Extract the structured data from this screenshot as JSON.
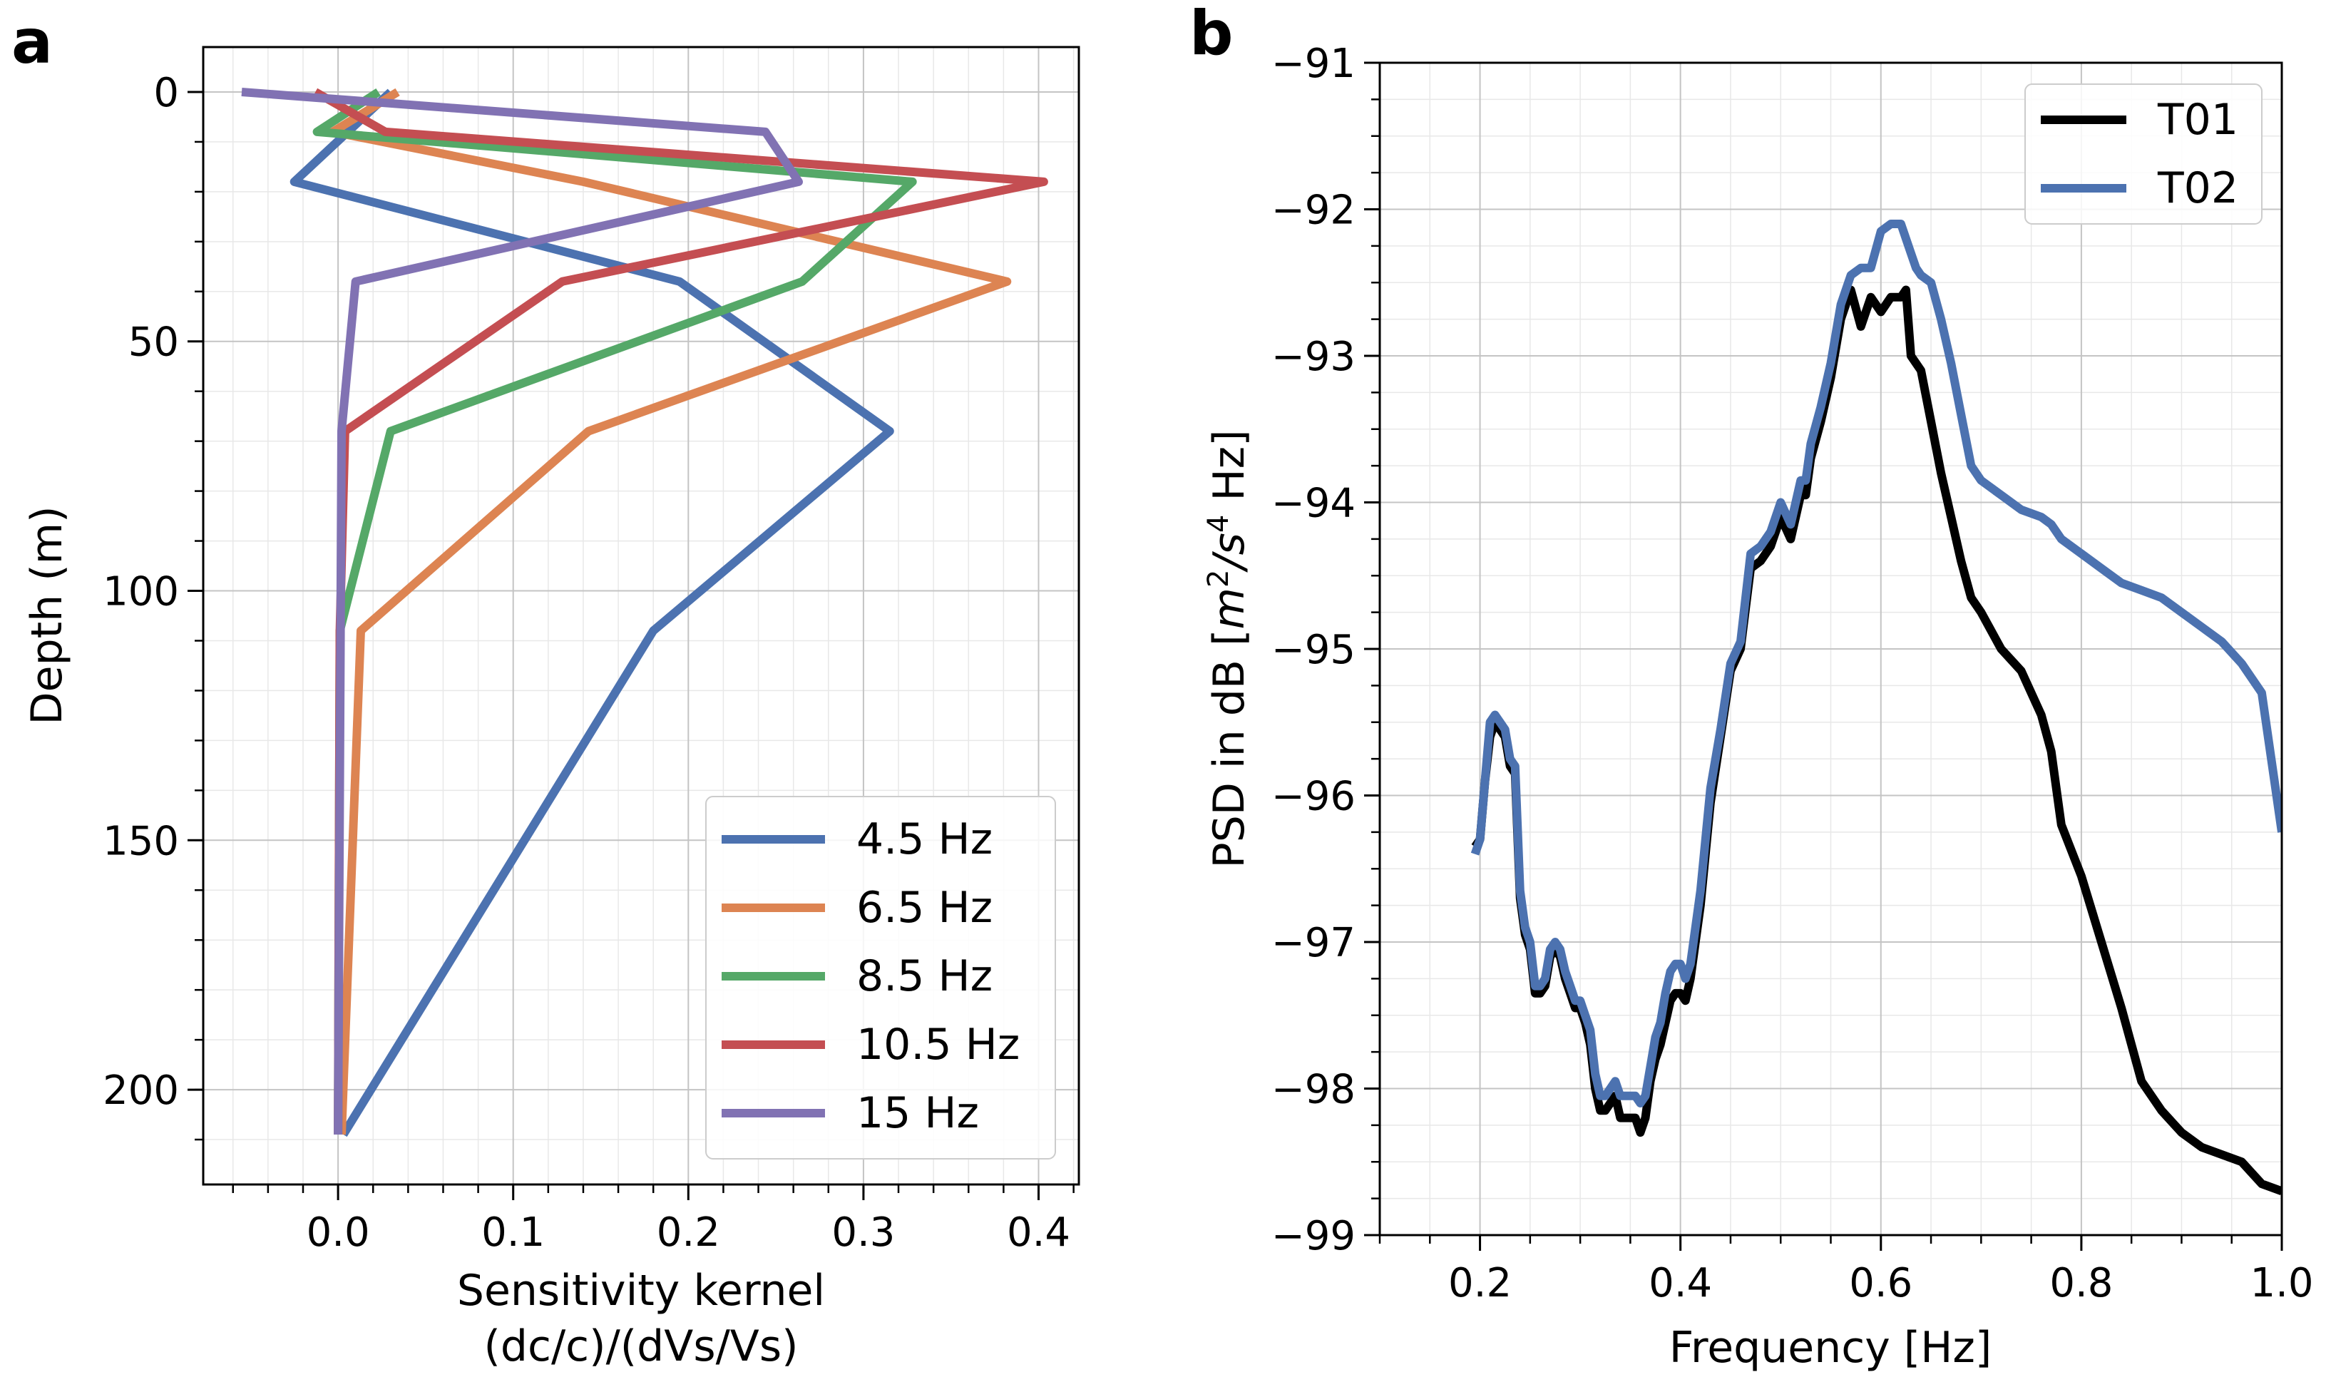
{
  "figure": {
    "panel_a_label": "a",
    "panel_b_label": "b"
  },
  "chart_data": [
    {
      "type": "line",
      "panel": "a",
      "title": "",
      "xlabel_line1": "Sensitivity kernel",
      "xlabel_line2": "(dc/c)/(dVs/Vs)",
      "ylabel": "Depth (m)",
      "xlim": [
        -0.077,
        0.423
      ],
      "ylim": [
        219,
        -9
      ],
      "y_inverted": true,
      "grid": true,
      "legend_position": "lower-right",
      "xticks": [
        0.0,
        0.1,
        0.2,
        0.3,
        0.4
      ],
      "xtick_labels": [
        "0.0",
        "0.1",
        "0.2",
        "0.3",
        "0.4"
      ],
      "yticks": [
        0,
        50,
        100,
        150,
        200
      ],
      "ytick_labels": [
        "0",
        "50",
        "100",
        "150",
        "200"
      ],
      "series": [
        {
          "name": "4.5 Hz",
          "color": "#4c72b0",
          "x": [
            0.03,
            -0.025,
            0.195,
            0.315,
            0.18,
            0.003
          ],
          "y": [
            0,
            18,
            38,
            68,
            108,
            209
          ]
        },
        {
          "name": "6.5 Hz",
          "color": "#dd8452",
          "x": [
            0.034,
            -0.003,
            0.14,
            0.382,
            0.143,
            0.013,
            0.002
          ],
          "y": [
            0,
            8,
            18,
            38,
            68,
            108,
            209
          ]
        },
        {
          "name": "8.5 Hz",
          "color": "#55a868",
          "x": [
            0.023,
            -0.012,
            0.328,
            0.265,
            0.03,
            0.001,
            0.0
          ],
          "y": [
            0,
            8,
            18,
            38,
            68,
            108,
            209
          ]
        },
        {
          "name": "10.5 Hz",
          "color": "#c44e52",
          "x": [
            -0.013,
            0.027,
            0.403,
            0.128,
            0.004,
            0.001,
            0.0
          ],
          "y": [
            0,
            8,
            18,
            38,
            68,
            108,
            209
          ]
        },
        {
          "name": "15 Hz",
          "color": "#8172b3",
          "x": [
            -0.055,
            0.244,
            0.263,
            0.01,
            0.002,
            0.0
          ],
          "y": [
            0,
            8,
            18,
            38,
            68,
            209
          ]
        }
      ]
    },
    {
      "type": "line",
      "panel": "b",
      "title": "",
      "xlabel": "Frequency [Hz]",
      "ylabel_prefix": "PSD in dB [",
      "ylabel_unit_m": "m",
      "ylabel_unit_m_exp": "2",
      "ylabel_unit_slash": "/",
      "ylabel_unit_s": "s",
      "ylabel_unit_s_exp": "4",
      "ylabel_suffix": " Hz]",
      "xlim": [
        0.1,
        1.0
      ],
      "ylim": [
        -99,
        -91
      ],
      "grid": true,
      "legend_position": "upper-right",
      "xticks": [
        0.2,
        0.4,
        0.6,
        0.8,
        1.0
      ],
      "xtick_labels": [
        "0.2",
        "0.4",
        "0.6",
        "0.8",
        "1.0"
      ],
      "yticks": [
        -99,
        -98,
        -97,
        -96,
        -95,
        -94,
        -93,
        -92,
        -91
      ],
      "ytick_labels": [
        "−99",
        "−98",
        "−97",
        "−96",
        "−95",
        "−94",
        "−93",
        "−92",
        "−91"
      ],
      "series": [
        {
          "name": "T01",
          "color": "#000000",
          "x": [
            0.195,
            0.2,
            0.205,
            0.21,
            0.215,
            0.22,
            0.225,
            0.23,
            0.235,
            0.24,
            0.245,
            0.25,
            0.255,
            0.26,
            0.265,
            0.27,
            0.275,
            0.28,
            0.285,
            0.29,
            0.295,
            0.3,
            0.305,
            0.31,
            0.315,
            0.32,
            0.325,
            0.33,
            0.335,
            0.34,
            0.345,
            0.35,
            0.355,
            0.36,
            0.365,
            0.37,
            0.375,
            0.38,
            0.385,
            0.39,
            0.395,
            0.4,
            0.405,
            0.41,
            0.42,
            0.43,
            0.44,
            0.45,
            0.46,
            0.47,
            0.48,
            0.49,
            0.5,
            0.51,
            0.52,
            0.525,
            0.53,
            0.54,
            0.55,
            0.56,
            0.57,
            0.58,
            0.59,
            0.6,
            0.61,
            0.62,
            0.625,
            0.63,
            0.635,
            0.64,
            0.65,
            0.66,
            0.67,
            0.68,
            0.69,
            0.7,
            0.72,
            0.74,
            0.76,
            0.77,
            0.78,
            0.8,
            0.82,
            0.84,
            0.86,
            0.88,
            0.9,
            0.92,
            0.94,
            0.96,
            0.98,
            1.0
          ],
          "y": [
            -96.35,
            -96.3,
            -95.9,
            -95.6,
            -95.5,
            -95.55,
            -95.6,
            -95.8,
            -95.85,
            -96.7,
            -96.95,
            -97.05,
            -97.35,
            -97.35,
            -97.3,
            -97.1,
            -97.05,
            -97.1,
            -97.25,
            -97.35,
            -97.45,
            -97.45,
            -97.55,
            -97.7,
            -98.0,
            -98.15,
            -98.15,
            -98.1,
            -98.05,
            -98.2,
            -98.2,
            -98.2,
            -98.2,
            -98.3,
            -98.2,
            -97.95,
            -97.8,
            -97.7,
            -97.55,
            -97.4,
            -97.35,
            -97.35,
            -97.4,
            -97.25,
            -96.75,
            -96.05,
            -95.6,
            -95.15,
            -95.0,
            -94.45,
            -94.4,
            -94.3,
            -94.1,
            -94.25,
            -93.95,
            -93.95,
            -93.7,
            -93.45,
            -93.15,
            -92.75,
            -92.55,
            -92.8,
            -92.6,
            -92.7,
            -92.6,
            -92.6,
            -92.55,
            -93.0,
            -93.05,
            -93.1,
            -93.45,
            -93.8,
            -94.1,
            -94.4,
            -94.65,
            -94.75,
            -95.0,
            -95.15,
            -95.45,
            -95.7,
            -96.2,
            -96.55,
            -97.0,
            -97.45,
            -97.95,
            -98.15,
            -98.3,
            -98.4,
            -98.45,
            -98.5,
            -98.65,
            -98.7
          ]
        },
        {
          "name": "T02",
          "color": "#4c72b0",
          "x": [
            0.195,
            0.2,
            0.205,
            0.21,
            0.215,
            0.22,
            0.225,
            0.23,
            0.235,
            0.24,
            0.245,
            0.25,
            0.255,
            0.26,
            0.265,
            0.27,
            0.275,
            0.28,
            0.285,
            0.29,
            0.295,
            0.3,
            0.305,
            0.31,
            0.315,
            0.32,
            0.325,
            0.33,
            0.335,
            0.34,
            0.345,
            0.35,
            0.355,
            0.36,
            0.365,
            0.37,
            0.375,
            0.38,
            0.385,
            0.39,
            0.395,
            0.4,
            0.405,
            0.41,
            0.42,
            0.43,
            0.44,
            0.45,
            0.46,
            0.47,
            0.48,
            0.49,
            0.5,
            0.51,
            0.52,
            0.525,
            0.53,
            0.54,
            0.55,
            0.56,
            0.57,
            0.58,
            0.59,
            0.6,
            0.61,
            0.62,
            0.625,
            0.63,
            0.635,
            0.64,
            0.65,
            0.66,
            0.67,
            0.68,
            0.69,
            0.7,
            0.72,
            0.74,
            0.76,
            0.77,
            0.78,
            0.8,
            0.82,
            0.84,
            0.86,
            0.88,
            0.9,
            0.92,
            0.94,
            0.96,
            0.98,
            1.0
          ],
          "y": [
            -96.4,
            -96.3,
            -95.9,
            -95.5,
            -95.45,
            -95.5,
            -95.55,
            -95.75,
            -95.8,
            -96.65,
            -96.9,
            -97.0,
            -97.3,
            -97.3,
            -97.25,
            -97.05,
            -97.0,
            -97.05,
            -97.2,
            -97.3,
            -97.4,
            -97.4,
            -97.5,
            -97.6,
            -97.9,
            -98.05,
            -98.05,
            -98.0,
            -97.95,
            -98.05,
            -98.05,
            -98.05,
            -98.05,
            -98.1,
            -98.05,
            -97.85,
            -97.65,
            -97.55,
            -97.35,
            -97.2,
            -97.15,
            -97.15,
            -97.25,
            -97.15,
            -96.65,
            -95.95,
            -95.55,
            -95.1,
            -94.95,
            -94.35,
            -94.3,
            -94.2,
            -94.0,
            -94.15,
            -93.85,
            -93.85,
            -93.6,
            -93.35,
            -93.05,
            -92.65,
            -92.45,
            -92.4,
            -92.4,
            -92.15,
            -92.1,
            -92.1,
            -92.2,
            -92.3,
            -92.4,
            -92.45,
            -92.5,
            -92.75,
            -93.05,
            -93.4,
            -93.75,
            -93.85,
            -93.95,
            -94.05,
            -94.1,
            -94.15,
            -94.25,
            -94.35,
            -94.45,
            -94.55,
            -94.6,
            -94.65,
            -94.75,
            -94.85,
            -94.95,
            -95.1,
            -95.3,
            -96.25
          ]
        }
      ]
    }
  ]
}
